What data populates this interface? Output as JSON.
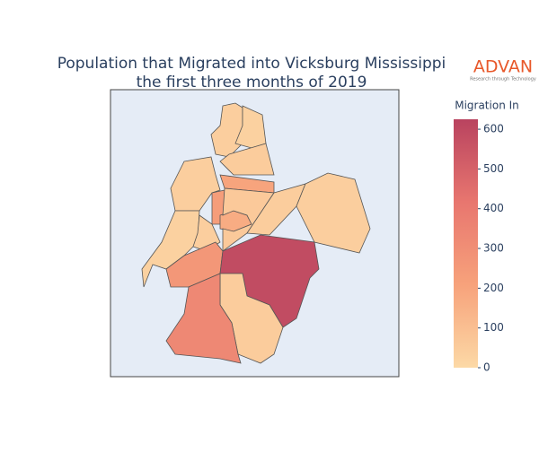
{
  "chart_data": {
    "type": "choropleth",
    "title": "Population that Migrated into Vicksburg Mississippi",
    "subtitle": "the first three months of 2019",
    "logo": {
      "name": "ADVAN",
      "tagline": "Research through Technology"
    },
    "colorbar_title": "Migration In",
    "zlim": [
      0,
      625
    ],
    "zticks": [
      0,
      100,
      200,
      300,
      400,
      500,
      600
    ],
    "colorscale": [
      "#fcd9a6",
      "#f7a27b",
      "#e8766f",
      "#b9435f"
    ],
    "values": [
      40,
      30,
      50,
      40,
      200,
      230,
      170,
      60,
      30,
      40,
      260,
      45,
      40,
      590,
      50,
      330
    ]
  }
}
